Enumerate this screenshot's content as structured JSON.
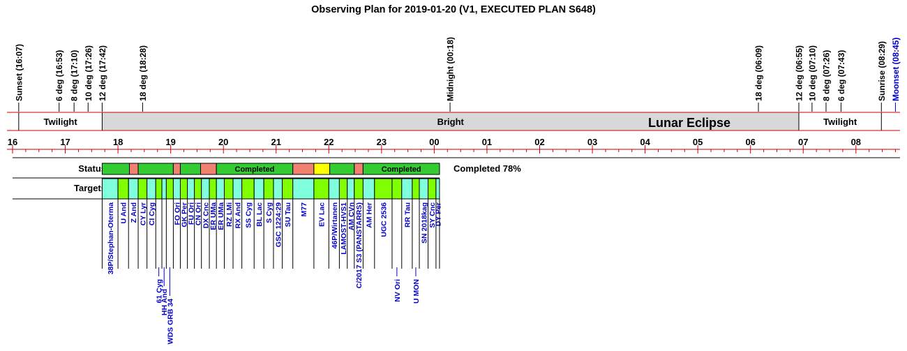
{
  "title": "Observing Plan for 2019-01-20 (V1, EXECUTED PLAN S648)",
  "colors": {
    "axis": "#cc0000",
    "bright": "#d8d8d8",
    "event_text": "#000000",
    "moon_text": "#0000cc",
    "target_text": "#0000cc",
    "completed": "#33cc33",
    "failed": "#f08070",
    "pending": "#ffff00",
    "targets_green": "#80ff00",
    "targets_cyan": "#80ffdd"
  },
  "events": [
    {
      "label": "Sunset (16:07)",
      "t": 16.117,
      "moon": false
    },
    {
      "label": "6 deg (16:53)",
      "t": 16.883,
      "moon": false
    },
    {
      "label": "8 deg (17:10)",
      "t": 17.167,
      "moon": false
    },
    {
      "label": "10 deg (17:26)",
      "t": 17.433,
      "moon": false
    },
    {
      "label": "12 deg (17:42)",
      "t": 17.7,
      "moon": false
    },
    {
      "label": "18 deg (18:28)",
      "t": 18.467,
      "moon": false
    },
    {
      "label": "Midnight (00:18)",
      "t": 24.3,
      "moon": false
    },
    {
      "label": "18 deg (06:09)",
      "t": 30.15,
      "moon": false
    },
    {
      "label": "12 deg (06:55)",
      "t": 30.917,
      "moon": false
    },
    {
      "label": "10 deg (07:10)",
      "t": 31.167,
      "moon": false
    },
    {
      "label": "8 deg (07:26)",
      "t": 31.433,
      "moon": false
    },
    {
      "label": "6 deg (07:43)",
      "t": 31.717,
      "moon": false
    },
    {
      "label": "Sunrise (08:29)",
      "t": 32.483,
      "moon": false
    },
    {
      "label": "Moonset (08:45)",
      "t": 32.75,
      "moon": true
    }
  ],
  "twilight_left": {
    "label": "Twilight",
    "start": 16.117,
    "end": 17.7
  },
  "bright": {
    "label": "Bright",
    "start": 17.7,
    "end": 30.917
  },
  "lunar_eclipse": {
    "label": "Lunar Eclipse"
  },
  "twilight_right": {
    "label": "Twilight",
    "start": 30.917,
    "end": 32.483
  },
  "hour_labels": [
    "16",
    "17",
    "18",
    "19",
    "20",
    "21",
    "22",
    "23",
    "00",
    "01",
    "02",
    "03",
    "04",
    "05",
    "06",
    "07",
    "08"
  ],
  "status": {
    "row_label": "Status",
    "summary": "Completed 78%",
    "completed_label": "Completed",
    "segments": [
      {
        "start": 17.7,
        "end": 18.217,
        "state": "completed"
      },
      {
        "start": 18.217,
        "end": 18.383,
        "state": "failed"
      },
      {
        "start": 18.383,
        "end": 19.05,
        "state": "completed"
      },
      {
        "start": 19.05,
        "end": 19.183,
        "state": "failed"
      },
      {
        "start": 19.183,
        "end": 19.567,
        "state": "completed"
      },
      {
        "start": 19.567,
        "end": 19.867,
        "state": "failed"
      },
      {
        "start": 19.867,
        "end": 21.317,
        "state": "completed",
        "labeled": true
      },
      {
        "start": 21.317,
        "end": 21.717,
        "state": "failed"
      },
      {
        "start": 21.717,
        "end": 22.017,
        "state": "pending"
      },
      {
        "start": 22.017,
        "end": 22.483,
        "state": "completed"
      },
      {
        "start": 22.483,
        "end": 22.65,
        "state": "failed"
      },
      {
        "start": 22.65,
        "end": 24.1,
        "state": "completed",
        "labeled": true
      }
    ]
  },
  "targets": {
    "row_label": "Targets",
    "items": [
      {
        "name": "38P/Stephan-Oterma",
        "start": 17.7,
        "end": 18.0,
        "color": "cyan",
        "tier": 0
      },
      {
        "name": "U And",
        "start": 18.0,
        "end": 18.2,
        "color": "green",
        "tier": 0
      },
      {
        "name": "Z And",
        "start": 18.2,
        "end": 18.383,
        "color": "cyan",
        "tier": 0
      },
      {
        "name": "CY Lyr",
        "start": 18.383,
        "end": 18.55,
        "color": "green",
        "tier": 0
      },
      {
        "name": "CI Cyg",
        "start": 18.55,
        "end": 18.717,
        "color": "cyan",
        "tier": 0
      },
      {
        "name": "61 Cyg",
        "start": 18.717,
        "end": 18.833,
        "color": "green",
        "tier": 1
      },
      {
        "name": "HH And",
        "start": 18.833,
        "end": 18.917,
        "color": "cyan",
        "tier": 2
      },
      {
        "name": "WDS GRB 34",
        "start": 18.917,
        "end": 19.05,
        "color": "green",
        "tier": 3
      },
      {
        "name": "FO Ori",
        "start": 19.05,
        "end": 19.183,
        "color": "cyan",
        "tier": 0
      },
      {
        "name": "GK Per",
        "start": 19.183,
        "end": 19.317,
        "color": "green",
        "tier": 0
      },
      {
        "name": "FU Ori",
        "start": 19.317,
        "end": 19.45,
        "color": "cyan",
        "tier": 0
      },
      {
        "name": "CN Ori",
        "start": 19.45,
        "end": 19.583,
        "color": "green",
        "tier": 0
      },
      {
        "name": "DX Cnc",
        "start": 19.583,
        "end": 19.733,
        "color": "cyan",
        "tier": 0
      },
      {
        "name": "ER UMa",
        "start": 19.733,
        "end": 19.867,
        "color": "green",
        "tier": 0
      },
      {
        "name": "ER UMa",
        "start": 19.867,
        "end": 20.017,
        "color": "cyan",
        "tier": 0
      },
      {
        "name": "RZ LMi",
        "start": 20.017,
        "end": 20.183,
        "color": "green",
        "tier": 0
      },
      {
        "name": "RX And",
        "start": 20.183,
        "end": 20.35,
        "color": "cyan",
        "tier": 0
      },
      {
        "name": "SS Cyg",
        "start": 20.35,
        "end": 20.583,
        "color": "green",
        "tier": 0
      },
      {
        "name": "BL Lac",
        "start": 20.583,
        "end": 20.767,
        "color": "cyan",
        "tier": 0
      },
      {
        "name": "S Cyg",
        "start": 20.767,
        "end": 20.95,
        "color": "green",
        "tier": 0
      },
      {
        "name": "GSC 1224:29",
        "start": 20.95,
        "end": 21.117,
        "color": "cyan",
        "tier": 0
      },
      {
        "name": "SU Tau",
        "start": 21.117,
        "end": 21.317,
        "color": "green",
        "tier": 0
      },
      {
        "name": "M77",
        "start": 21.317,
        "end": 21.717,
        "color": "cyan",
        "tier": 0
      },
      {
        "name": "EV Lac",
        "start": 21.717,
        "end": 22.0,
        "color": "green",
        "tier": 0
      },
      {
        "name": "46P/Wirtanen",
        "start": 22.0,
        "end": 22.2,
        "color": "cyan",
        "tier": 0
      },
      {
        "name": "LAMOST-HVS1",
        "start": 22.2,
        "end": 22.35,
        "color": "green",
        "tier": 0
      },
      {
        "name": "AM CVn",
        "start": 22.35,
        "end": 22.483,
        "color": "cyan",
        "tier": 0
      },
      {
        "name": "C/2017 S3 (PANSTARRS)",
        "start": 22.483,
        "end": 22.65,
        "color": "green",
        "tier": 0
      },
      {
        "name": "AM Her",
        "start": 22.65,
        "end": 22.867,
        "color": "cyan",
        "tier": 0
      },
      {
        "name": "UGC 2536",
        "start": 22.867,
        "end": 23.2,
        "color": "green",
        "tier": 0
      },
      {
        "name": "NV Ori",
        "start": 23.2,
        "end": 23.383,
        "color": "green",
        "tier": 1
      },
      {
        "name": "RR Tau",
        "start": 23.383,
        "end": 23.583,
        "color": "cyan",
        "tier": 0
      },
      {
        "name": "U MON",
        "start": 23.583,
        "end": 23.717,
        "color": "green",
        "tier": 1
      },
      {
        "name": "SN 2018kag",
        "start": 23.717,
        "end": 23.883,
        "color": "cyan",
        "tier": 0
      },
      {
        "name": "SY Cnc",
        "start": 23.883,
        "end": 24.033,
        "color": "green",
        "tier": 0
      },
      {
        "name": "DY Per",
        "start": 24.033,
        "end": 24.1,
        "color": "cyan",
        "tier": 0
      }
    ]
  },
  "chart_data": {
    "type": "timeline",
    "title": "Observing Plan for 2019-01-20 (V1, EXECUTED PLAN S648)",
    "x_unit": "hours (local time, wrapping past midnight)",
    "xlim": [
      15.9,
      32.9
    ],
    "status_completed_percent": 78,
    "periods": [
      "Twilight",
      "Bright",
      "Twilight"
    ],
    "annotation": "Lunar Eclipse"
  }
}
